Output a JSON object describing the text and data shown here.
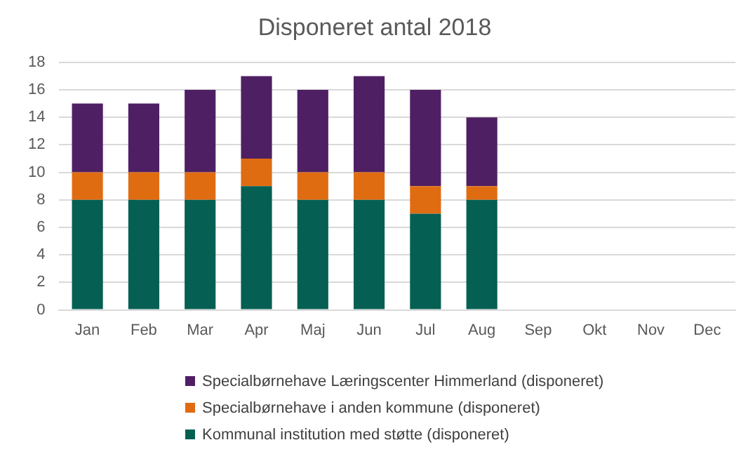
{
  "chart_data": {
    "type": "bar",
    "title": "Disponeret antal 2018",
    "categories": [
      "Jan",
      "Feb",
      "Mar",
      "Apr",
      "Maj",
      "Jun",
      "Jul",
      "Aug",
      "Sep",
      "Okt",
      "Nov",
      "Dec"
    ],
    "stacked": true,
    "ylim": [
      0,
      18
    ],
    "yticks": [
      0,
      2,
      4,
      6,
      8,
      10,
      12,
      14,
      16,
      18
    ],
    "grid": "y",
    "legend": "bottom",
    "series": [
      {
        "name": "Kommunal institution med støtte (disponeret)",
        "color": "#055f52",
        "values": [
          8,
          8,
          8,
          9,
          8,
          8,
          7,
          8,
          null,
          null,
          null,
          null
        ]
      },
      {
        "name": "Specialbørnehave i anden kommune (disponeret)",
        "color": "#e06c12",
        "values": [
          2,
          2,
          2,
          2,
          2,
          2,
          2,
          1,
          null,
          null,
          null,
          null
        ]
      },
      {
        "name": "Specialbørnehave Læringscenter Himmerland (disponeret)",
        "color": "#4f1f63",
        "values": [
          5,
          5,
          6,
          6,
          6,
          7,
          7,
          5,
          null,
          null,
          null,
          null
        ]
      }
    ]
  }
}
